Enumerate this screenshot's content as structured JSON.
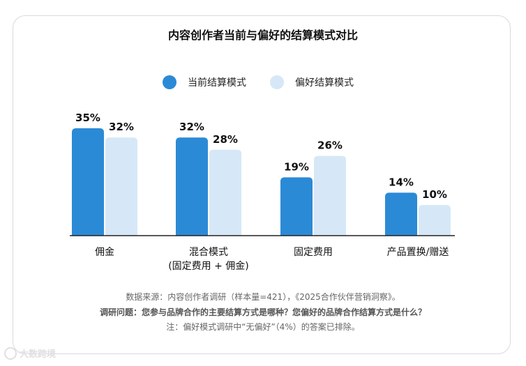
{
  "title": "内容创作者当前与偏好的结算模式对比",
  "legend": [
    {
      "label": "当前结算模式",
      "color": "#2b8ad6"
    },
    {
      "label": "偏好结算模式",
      "color": "#d6e8f7"
    }
  ],
  "chart_data": {
    "type": "bar",
    "title": "内容创作者当前与偏好的结算模式对比",
    "categories": [
      "佣金",
      "混合模式\n(固定费用 + 佣金)",
      "固定费用",
      "产品置换/赠送"
    ],
    "series": [
      {
        "name": "当前结算模式",
        "values": [
          35,
          32,
          19,
          14
        ],
        "labels": [
          "35%",
          "32%",
          "19%",
          "14%"
        ],
        "color": "#2b8ad6"
      },
      {
        "name": "偏好结算模式",
        "values": [
          32,
          28,
          26,
          10
        ],
        "labels": [
          "32%",
          "28%",
          "26%",
          "10%"
        ],
        "color": "#d6e8f7"
      }
    ],
    "ylim": [
      0,
      35
    ],
    "grid": false,
    "legend_position": "top-center"
  },
  "footer": {
    "source": "数据来源：内容创作者调研（样本量=421），《2025合作伙伴营销洞察》。",
    "question": "调研问题：您参与品牌合作的主要结算方式是哪种？您偏好的品牌合作结算方式是什么？",
    "note": "注：偏好模式调研中“无偏好”（4%）的答案已排除。"
  },
  "watermark": "大数跨境"
}
